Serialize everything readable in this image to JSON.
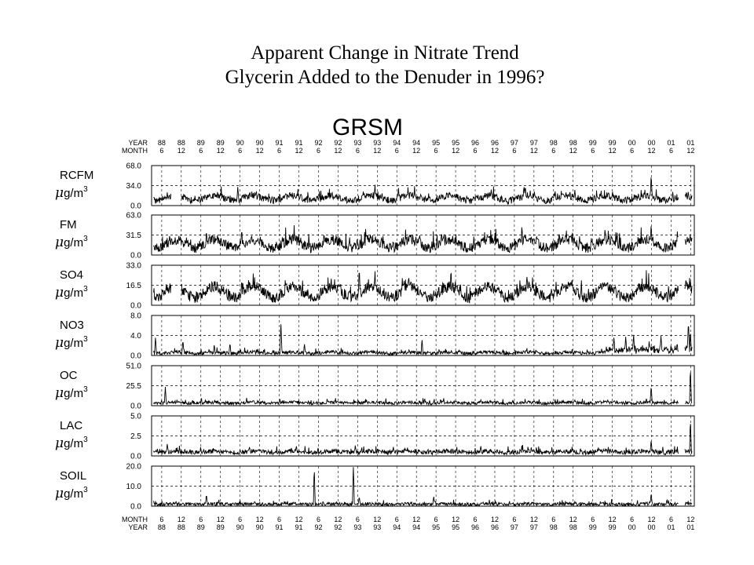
{
  "title": {
    "line1": "Apparent Change in Nitrate Trend",
    "line2": "Glycerin Added to the Denuder in 1996?"
  },
  "chart_data": {
    "type": "line",
    "site": "GRSM",
    "x_axis": {
      "top_row_labels": [
        "YEAR",
        "MONTH"
      ],
      "bottom_row_labels": [
        "MONTH",
        "YEAR"
      ],
      "ticks": [
        {
          "year": "88",
          "month": "6"
        },
        {
          "year": "88",
          "month": "12"
        },
        {
          "year": "89",
          "month": "6"
        },
        {
          "year": "89",
          "month": "12"
        },
        {
          "year": "90",
          "month": "6"
        },
        {
          "year": "90",
          "month": "12"
        },
        {
          "year": "91",
          "month": "6"
        },
        {
          "year": "91",
          "month": "12"
        },
        {
          "year": "92",
          "month": "6"
        },
        {
          "year": "92",
          "month": "12"
        },
        {
          "year": "93",
          "month": "6"
        },
        {
          "year": "93",
          "month": "12"
        },
        {
          "year": "94",
          "month": "6"
        },
        {
          "year": "94",
          "month": "12"
        },
        {
          "year": "95",
          "month": "6"
        },
        {
          "year": "95",
          "month": "12"
        },
        {
          "year": "96",
          "month": "6"
        },
        {
          "year": "96",
          "month": "12"
        },
        {
          "year": "97",
          "month": "6"
        },
        {
          "year": "97",
          "month": "12"
        },
        {
          "year": "98",
          "month": "6"
        },
        {
          "year": "98",
          "month": "12"
        },
        {
          "year": "99",
          "month": "6"
        },
        {
          "year": "99",
          "month": "12"
        },
        {
          "year": "00",
          "month": "6"
        },
        {
          "year": "00",
          "month": "12"
        },
        {
          "year": "01",
          "month": "6"
        },
        {
          "year": "01",
          "month": "12"
        }
      ],
      "range": [
        "1988-03",
        "2002-01"
      ]
    },
    "unit_label": {
      "mu": "μ",
      "rest": "g/m",
      "exp": "3"
    },
    "grid": true,
    "panels": [
      {
        "name": "RCFM",
        "yticks": [
          "68.0",
          "34.0",
          "0.0"
        ],
        "ylim": [
          0,
          68
        ],
        "typical": 7,
        "seasonal": 8,
        "noise": 6,
        "seed": 11,
        "peaks": [
          {
            "x": 1988.6,
            "v": 24
          },
          {
            "x": 1990.4,
            "v": 34
          },
          {
            "x": 1993.9,
            "v": 38
          },
          {
            "x": 1994.5,
            "v": 32
          },
          {
            "x": 1998.5,
            "v": 26
          },
          {
            "x": 2000.95,
            "v": 55
          },
          {
            "x": 2001.5,
            "v": 25
          }
        ],
        "gaps": [
          [
            1988.7,
            1988.95
          ],
          [
            2001.65,
            2001.8
          ]
        ]
      },
      {
        "name": "FM",
        "yticks": [
          "63.0",
          "31.5",
          "0.0"
        ],
        "ylim": [
          0,
          63
        ],
        "typical": 9,
        "seasonal": 13,
        "noise": 8,
        "seed": 23,
        "peaks": [
          {
            "x": 1989.6,
            "v": 42
          },
          {
            "x": 1990.5,
            "v": 44
          },
          {
            "x": 1992.6,
            "v": 38
          },
          {
            "x": 1995.6,
            "v": 40
          },
          {
            "x": 1996.7,
            "v": 36
          },
          {
            "x": 1998.6,
            "v": 40
          },
          {
            "x": 2000.95,
            "v": 52
          }
        ],
        "gaps": [
          [
            2001.65,
            2001.8
          ]
        ]
      },
      {
        "name": "SO4",
        "yticks": [
          "33.0",
          "16.5",
          "0.0"
        ],
        "ylim": [
          0,
          33
        ],
        "typical": 5,
        "seasonal": 9,
        "noise": 4.5,
        "seed": 37,
        "peaks": [
          {
            "x": 1988.6,
            "v": 17
          },
          {
            "x": 1990.5,
            "v": 23
          },
          {
            "x": 1993.5,
            "v": 33
          },
          {
            "x": 1993.9,
            "v": 30
          },
          {
            "x": 1994.6,
            "v": 24
          },
          {
            "x": 1997.6,
            "v": 22
          }
        ],
        "gaps": [
          [
            1988.7,
            1988.95
          ],
          [
            2001.65,
            2001.8
          ]
        ]
      },
      {
        "name": "NO3",
        "yticks": [
          "8.0",
          "4.0",
          "0.0"
        ],
        "ylim": [
          0,
          8
        ],
        "typical": 0.3,
        "seasonal": 0.25,
        "noise": 0.35,
        "seed": 41,
        "peaks": [
          {
            "x": 1988.3,
            "v": 3.8
          },
          {
            "x": 1989.0,
            "v": 3.2
          },
          {
            "x": 1989.8,
            "v": 2.2
          },
          {
            "x": 1990.2,
            "v": 2.6
          },
          {
            "x": 1991.5,
            "v": 6.7
          },
          {
            "x": 1992.1,
            "v": 2.4
          },
          {
            "x": 1995.1,
            "v": 3.3
          },
          {
            "x": 2000.0,
            "v": 3.8
          },
          {
            "x": 2000.3,
            "v": 4.0
          },
          {
            "x": 2000.5,
            "v": 4.4
          },
          {
            "x": 2000.9,
            "v": 3.0
          },
          {
            "x": 2001.2,
            "v": 4.2
          },
          {
            "x": 2001.9,
            "v": 7.2
          },
          {
            "x": 2001.95,
            "v": 5.0
          }
        ],
        "gaps": [
          [
            2001.65,
            2001.8
          ]
        ],
        "late_boost": {
          "from": 1999.8,
          "amount": 1.3
        }
      },
      {
        "name": "OC",
        "yticks": [
          "51.0",
          "25.5",
          "0.0"
        ],
        "ylim": [
          0,
          51
        ],
        "typical": 2.5,
        "seasonal": 1.2,
        "noise": 2,
        "seed": 53,
        "peaks": [
          {
            "x": 1988.55,
            "v": 24
          },
          {
            "x": 1996.6,
            "v": 8
          },
          {
            "x": 2000.95,
            "v": 26
          },
          {
            "x": 2001.95,
            "v": 49
          }
        ],
        "gaps": [
          [
            2001.65,
            2001.8
          ]
        ]
      },
      {
        "name": "LAC",
        "yticks": [
          "5.0",
          "2.5",
          "0.0"
        ],
        "ylim": [
          0,
          5
        ],
        "typical": 0.35,
        "seasonal": 0.15,
        "noise": 0.28,
        "seed": 67,
        "peaks": [
          {
            "x": 1988.6,
            "v": 1.6
          },
          {
            "x": 1993.4,
            "v": 1.4
          },
          {
            "x": 1996.6,
            "v": 1.3
          },
          {
            "x": 2000.95,
            "v": 2.1
          },
          {
            "x": 2001.95,
            "v": 4.6
          }
        ],
        "gaps": [
          [
            2001.65,
            2001.8
          ]
        ]
      },
      {
        "name": "SOIL",
        "yticks": [
          "20.0",
          "10.0",
          "0.0"
        ],
        "ylim": [
          0,
          20
        ],
        "typical": 0.6,
        "seasonal": 0.3,
        "noise": 0.8,
        "seed": 79,
        "peaks": [
          {
            "x": 1989.6,
            "v": 6.2
          },
          {
            "x": 1992.35,
            "v": 19.5
          },
          {
            "x": 1993.35,
            "v": 19.5
          },
          {
            "x": 1993.5,
            "v": 5
          },
          {
            "x": 1995.4,
            "v": 5
          },
          {
            "x": 2000.95,
            "v": 6.5
          },
          {
            "x": 2001.35,
            "v": 3.5
          }
        ],
        "gaps": [
          [
            2001.65,
            2001.8
          ]
        ]
      }
    ]
  }
}
